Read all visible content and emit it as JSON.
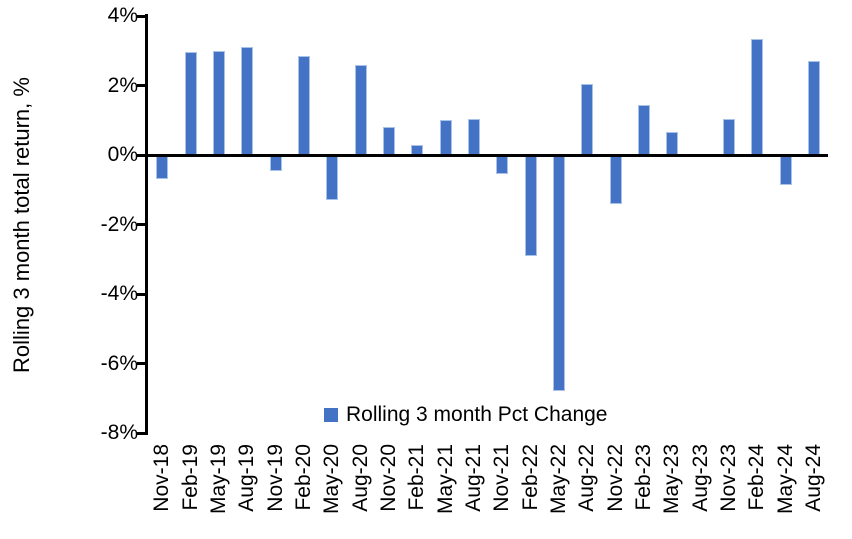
{
  "chart_data": {
    "type": "bar",
    "title": "",
    "ylabel": "Rolling 3 month total return, %",
    "xlabel": "",
    "ylim": [
      -8,
      4
    ],
    "ytick_step": 2,
    "ytick_labels": [
      "4%",
      "2%",
      "0%",
      "-2%",
      "-4%",
      "-6%",
      "-8%"
    ],
    "ytick_values": [
      4,
      2,
      0,
      -2,
      -4,
      -6,
      -8
    ],
    "grid": false,
    "legend_position": "bottom-center",
    "bar_color": "#4472C4",
    "bar_edge_color": "#A9C2E8",
    "axis_color": "#000000",
    "categories": [
      "Nov-18",
      "Feb-19",
      "May-19",
      "Aug-19",
      "Nov-19",
      "Feb-20",
      "May-20",
      "Aug-20",
      "Nov-20",
      "Feb-21",
      "May-21",
      "Aug-21",
      "Nov-21",
      "Feb-22",
      "May-22",
      "Aug-22",
      "Nov-22",
      "Feb-23",
      "May-23",
      "Aug-23",
      "Nov-23",
      "Feb-24",
      "May-24",
      "Aug-24"
    ],
    "series": [
      {
        "name": "Rolling 3 month Pct Change",
        "values": [
          -0.7,
          2.95,
          3.0,
          3.1,
          -0.45,
          2.85,
          -1.3,
          2.6,
          0.8,
          0.3,
          1.0,
          1.05,
          -0.55,
          -2.9,
          -6.8,
          2.05,
          -1.4,
          1.45,
          0.65,
          0,
          1.05,
          3.35,
          -0.85,
          2.7
        ]
      }
    ]
  }
}
